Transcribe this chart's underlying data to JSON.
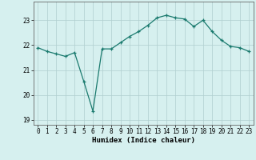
{
  "x": [
    0,
    1,
    2,
    3,
    4,
    5,
    6,
    7,
    8,
    9,
    10,
    11,
    12,
    13,
    14,
    15,
    16,
    17,
    18,
    19,
    20,
    21,
    22,
    23
  ],
  "y": [
    21.9,
    21.75,
    21.65,
    21.55,
    21.7,
    20.55,
    19.35,
    21.85,
    21.85,
    22.1,
    22.35,
    22.55,
    22.8,
    23.1,
    23.2,
    23.1,
    23.05,
    22.75,
    23.0,
    22.55,
    22.2,
    21.95,
    21.9,
    21.75
  ],
  "xlabel": "Humidex (Indice chaleur)",
  "line_color": "#1a7a6e",
  "bg_color": "#d6f0ef",
  "grid_color": "#b0cece",
  "ylim": [
    18.8,
    23.75
  ],
  "yticks": [
    19,
    20,
    21,
    22,
    23
  ],
  "xticks": [
    0,
    1,
    2,
    3,
    4,
    5,
    6,
    7,
    8,
    9,
    10,
    11,
    12,
    13,
    14,
    15,
    16,
    17,
    18,
    19,
    20,
    21,
    22,
    23
  ]
}
